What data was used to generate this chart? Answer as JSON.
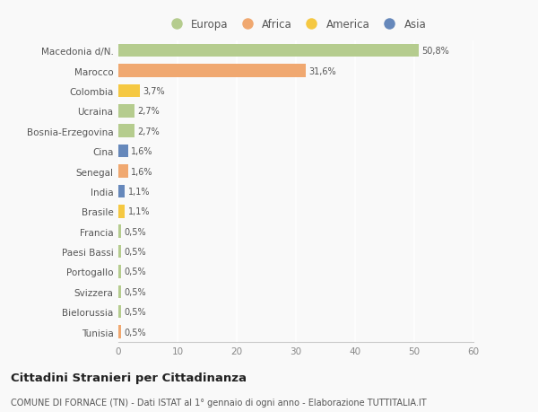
{
  "countries": [
    "Macedonia d/N.",
    "Marocco",
    "Colombia",
    "Ucraina",
    "Bosnia-Erzegovina",
    "Cina",
    "Senegal",
    "India",
    "Brasile",
    "Francia",
    "Paesi Bassi",
    "Portogallo",
    "Svizzera",
    "Bielorussia",
    "Tunisia"
  ],
  "values": [
    50.8,
    31.6,
    3.7,
    2.7,
    2.7,
    1.6,
    1.6,
    1.1,
    1.1,
    0.5,
    0.5,
    0.5,
    0.5,
    0.5,
    0.5
  ],
  "labels": [
    "50,8%",
    "31,6%",
    "3,7%",
    "2,7%",
    "2,7%",
    "1,6%",
    "1,6%",
    "1,1%",
    "1,1%",
    "0,5%",
    "0,5%",
    "0,5%",
    "0,5%",
    "0,5%",
    "0,5%"
  ],
  "continents": [
    "Europa",
    "Africa",
    "America",
    "Europa",
    "Europa",
    "Asia",
    "Africa",
    "Asia",
    "America",
    "Europa",
    "Europa",
    "Europa",
    "Europa",
    "Europa",
    "Africa"
  ],
  "continent_colors": {
    "Europa": "#b5cc8e",
    "Africa": "#f0a870",
    "America": "#f5c842",
    "Asia": "#6688bb"
  },
  "legend_order": [
    "Europa",
    "Africa",
    "America",
    "Asia"
  ],
  "title": "Cittadini Stranieri per Cittadinanza",
  "subtitle": "COMUNE DI FORNACE (TN) - Dati ISTAT al 1° gennaio di ogni anno - Elaborazione TUTTITALIA.IT",
  "xlim": [
    0,
    60
  ],
  "xticks": [
    0,
    10,
    20,
    30,
    40,
    50,
    60
  ],
  "bg_color": "#f9f9f9",
  "grid_color": "#ffffff",
  "bar_height": 0.65
}
